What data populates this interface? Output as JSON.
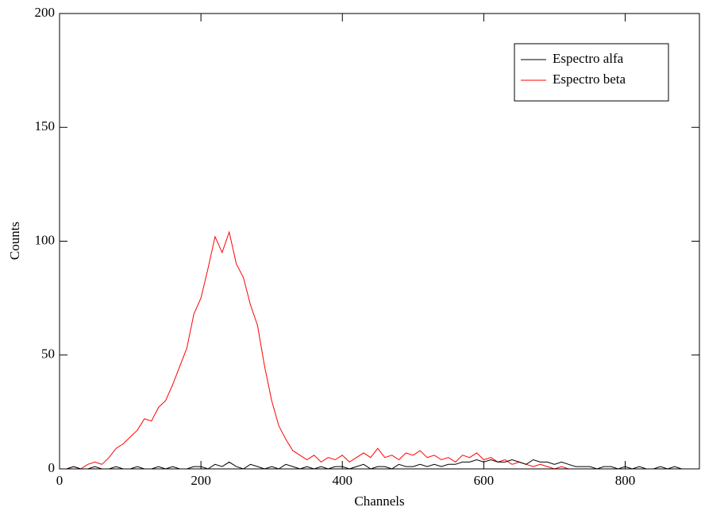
{
  "chart_data": {
    "type": "line",
    "xlabel": "Channels",
    "ylabel": "Counts",
    "x": [
      0,
      10,
      20,
      30,
      40,
      50,
      60,
      70,
      80,
      90,
      100,
      110,
      120,
      130,
      140,
      150,
      160,
      170,
      180,
      190,
      200,
      210,
      220,
      230,
      240,
      250,
      260,
      270,
      280,
      290,
      300,
      310,
      320,
      330,
      340,
      350,
      360,
      370,
      380,
      390,
      400,
      410,
      420,
      430,
      440,
      450,
      460,
      470,
      480,
      490,
      500,
      510,
      520,
      530,
      540,
      550,
      560,
      570,
      580,
      590,
      600,
      610,
      620,
      630,
      640,
      650,
      660,
      670,
      680,
      690,
      700,
      710,
      720,
      730,
      740,
      750,
      760,
      770,
      780,
      790,
      800,
      810,
      820,
      830,
      840,
      850,
      860,
      870,
      880
    ],
    "series": [
      {
        "name": "Espectro alfa",
        "color": "#000000",
        "values": [
          0,
          0,
          1,
          0,
          0,
          1,
          0,
          0,
          1,
          0,
          0,
          1,
          0,
          0,
          1,
          0,
          1,
          0,
          0,
          1,
          1,
          0,
          2,
          1,
          3,
          1,
          0,
          2,
          1,
          0,
          1,
          0,
          2,
          1,
          0,
          1,
          0,
          1,
          0,
          1,
          1,
          0,
          1,
          2,
          0,
          1,
          1,
          0,
          2,
          1,
          1,
          2,
          1,
          2,
          1,
          2,
          2,
          3,
          3,
          4,
          3,
          4,
          3,
          3,
          4,
          3,
          2,
          4,
          3,
          3,
          2,
          3,
          2,
          1,
          1,
          1,
          0,
          1,
          1,
          0,
          1,
          0,
          1,
          0,
          0,
          1,
          0,
          1,
          0
        ]
      },
      {
        "name": "Espectro beta",
        "color": "#ff0000",
        "values": [
          null,
          0,
          1,
          0,
          2,
          3,
          2,
          5,
          9,
          11,
          14,
          17,
          22,
          21,
          27,
          30,
          37,
          45,
          53,
          68,
          75,
          88,
          102,
          95,
          104,
          90,
          84,
          72,
          63,
          45,
          30,
          19,
          13,
          8,
          6,
          4,
          6,
          3,
          5,
          4,
          6,
          3,
          5,
          7,
          5,
          9,
          5,
          6,
          4,
          7,
          6,
          8,
          5,
          6,
          4,
          5,
          3,
          6,
          5,
          7,
          4,
          5,
          3,
          4,
          2,
          3,
          2,
          1,
          2,
          1,
          0,
          1,
          0,
          0,
          0,
          0,
          0,
          0,
          0,
          0,
          0,
          0,
          0,
          0,
          0,
          0,
          0,
          0,
          0
        ]
      }
    ],
    "xlim": [
      0,
      905
    ],
    "ylim": [
      0,
      200
    ],
    "xticks": [
      0,
      200,
      400,
      600,
      800
    ],
    "yticks": [
      0,
      50,
      100,
      150,
      200
    ],
    "legend": "upper right"
  }
}
